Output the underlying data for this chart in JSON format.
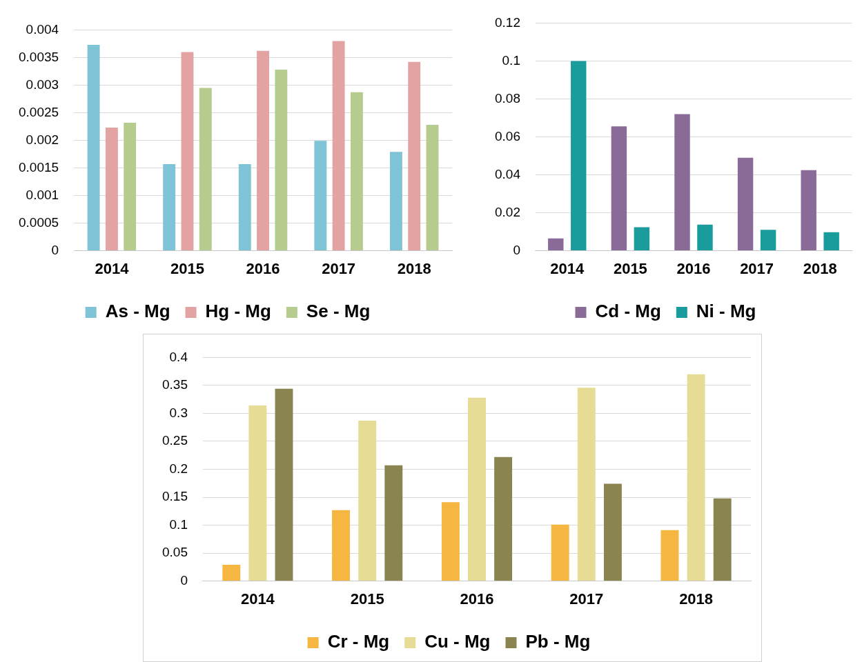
{
  "chart_data": [
    {
      "type": "bar",
      "categories": [
        "2014",
        "2015",
        "2016",
        "2017",
        "2018"
      ],
      "series": [
        {
          "name": "As - Mg",
          "color": "#7ec3d6",
          "values": [
            0.00373,
            0.00157,
            0.00157,
            0.00199,
            0.00179
          ]
        },
        {
          "name": "Hg - Mg",
          "color": "#e3a3a3",
          "values": [
            0.00223,
            0.0036,
            0.00362,
            0.0038,
            0.00342
          ]
        },
        {
          "name": "Se - Mg",
          "color": "#b5cc8e",
          "values": [
            0.00232,
            0.00295,
            0.00328,
            0.00287,
            0.00228
          ]
        }
      ],
      "ylim": [
        0,
        0.004
      ],
      "yticks": [
        0,
        0.0005,
        0.001,
        0.0015,
        0.002,
        0.0025,
        0.003,
        0.0035,
        0.004
      ],
      "grid": "y",
      "legend": "bottom"
    },
    {
      "type": "bar",
      "categories": [
        "2014",
        "2015",
        "2016",
        "2017",
        "2018"
      ],
      "series": [
        {
          "name": "Cd - Mg",
          "color": "#8a6a96",
          "values": [
            0.0065,
            0.0655,
            0.072,
            0.049,
            0.0425
          ]
        },
        {
          "name": "Ni - Mg",
          "color": "#1a9c9c",
          "values": [
            0.1,
            0.0124,
            0.0138,
            0.011,
            0.0098
          ]
        }
      ],
      "ylim": [
        0,
        0.12
      ],
      "yticks": [
        0,
        0.02,
        0.04,
        0.06,
        0.08,
        0.1,
        0.12
      ],
      "grid": "y",
      "legend": "bottom"
    },
    {
      "type": "bar",
      "categories": [
        "2014",
        "2015",
        "2016",
        "2017",
        "2018"
      ],
      "series": [
        {
          "name": "Cr - Mg",
          "color": "#f5b642",
          "values": [
            0.029,
            0.127,
            0.141,
            0.101,
            0.091
          ]
        },
        {
          "name": "Cu - Mg",
          "color": "#e6dc96",
          "values": [
            0.314,
            0.287,
            0.328,
            0.346,
            0.37
          ]
        },
        {
          "name": "Pb - Mg",
          "color": "#8a8550",
          "values": [
            0.344,
            0.207,
            0.222,
            0.174,
            0.148
          ]
        }
      ],
      "ylim": [
        0,
        0.4
      ],
      "yticks": [
        0,
        0.05,
        0.1,
        0.15,
        0.2,
        0.25,
        0.3,
        0.35,
        0.4
      ],
      "grid": "y",
      "legend": "bottom"
    }
  ]
}
